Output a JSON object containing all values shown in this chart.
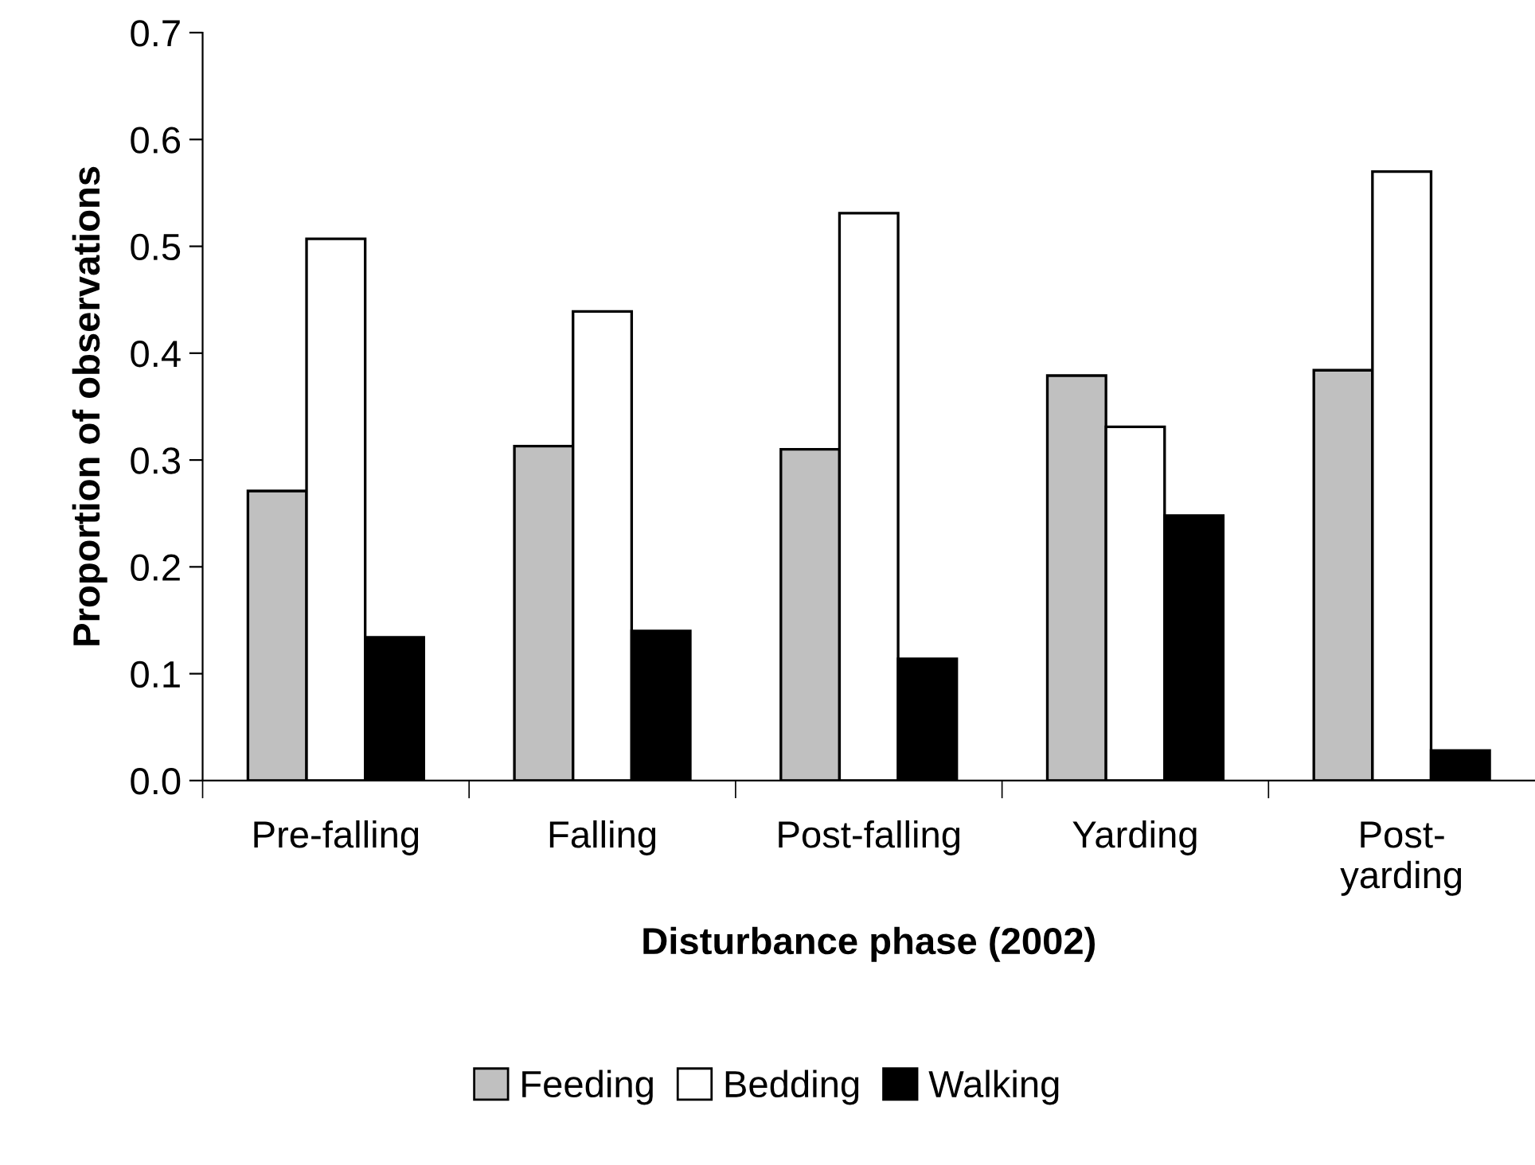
{
  "chart_data": {
    "type": "bar",
    "xlabel": "Disturbance phase (2002)",
    "ylabel": "Proportion of observations",
    "categories": [
      "Pre-falling",
      "Falling",
      "Post-falling",
      "Yarding",
      "Post-\nyarding"
    ],
    "series": [
      {
        "name": "Feeding",
        "color": "#c0c0c0",
        "values": [
          0.271,
          0.313,
          0.31,
          0.379,
          0.384
        ]
      },
      {
        "name": "Bedding",
        "color": "#ffffff",
        "values": [
          0.507,
          0.439,
          0.531,
          0.331,
          0.57
        ]
      },
      {
        "name": "Walking",
        "color": "#000000",
        "values": [
          0.134,
          0.14,
          0.114,
          0.248,
          0.028
        ]
      }
    ],
    "ylim": [
      0,
      0.7
    ],
    "yticks": [
      {
        "value": 0,
        "label": "0.0"
      },
      0.1,
      0.2,
      0.3,
      0.4,
      0.5,
      0.6,
      0.7
    ],
    "grid": false,
    "legend": "bottom"
  }
}
